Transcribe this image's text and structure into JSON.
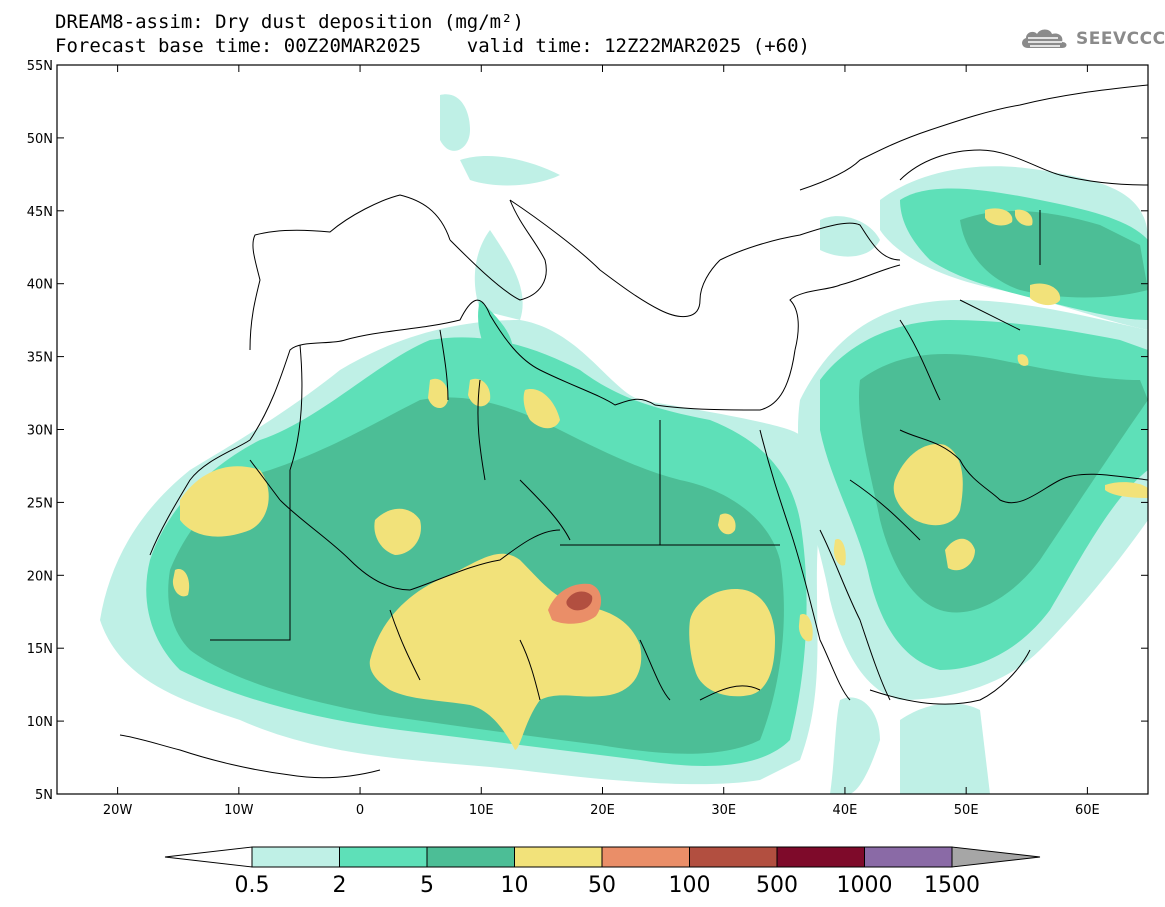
{
  "header": {
    "title_line1": "DREAM8-assim: Dry dust deposition (mg/m²)",
    "title_line2": "Forecast base time: 00Z20MAR2025    valid time: 12Z22MAR2025 (+60)",
    "brand": "SEEVCCC"
  },
  "map": {
    "lon_range": [
      -25,
      65
    ],
    "lat_range": [
      5,
      55
    ],
    "lat_ticks": [
      {
        "value": 55,
        "label": "55N"
      },
      {
        "value": 50,
        "label": "50N"
      },
      {
        "value": 45,
        "label": "45N"
      },
      {
        "value": 40,
        "label": "40N"
      },
      {
        "value": 35,
        "label": "35N"
      },
      {
        "value": 30,
        "label": "30N"
      },
      {
        "value": 25,
        "label": "25N"
      },
      {
        "value": 20,
        "label": "20N"
      },
      {
        "value": 15,
        "label": "15N"
      },
      {
        "value": 10,
        "label": "10N"
      },
      {
        "value": 5,
        "label": "5N"
      }
    ],
    "lon_ticks": [
      {
        "value": -20,
        "label": "20W"
      },
      {
        "value": -10,
        "label": "10W"
      },
      {
        "value": 0,
        "label": "0"
      },
      {
        "value": 10,
        "label": "10E"
      },
      {
        "value": 20,
        "label": "20E"
      },
      {
        "value": 30,
        "label": "30E"
      },
      {
        "value": 40,
        "label": "40E"
      },
      {
        "value": 50,
        "label": "50E"
      },
      {
        "value": 60,
        "label": "60E"
      }
    ]
  },
  "colorbar": {
    "labels": [
      "0.5",
      "2",
      "5",
      "10",
      "50",
      "100",
      "500",
      "1000",
      "1500"
    ],
    "colors": [
      "#bff0e6",
      "#5ee0b8",
      "#4cbe96",
      "#f2e27a",
      "#ea8e68",
      "#b24f40",
      "#7e0a2a",
      "#8a6aa6"
    ],
    "under_color": "#ffffff",
    "over_color": "#a6a6a6"
  }
}
